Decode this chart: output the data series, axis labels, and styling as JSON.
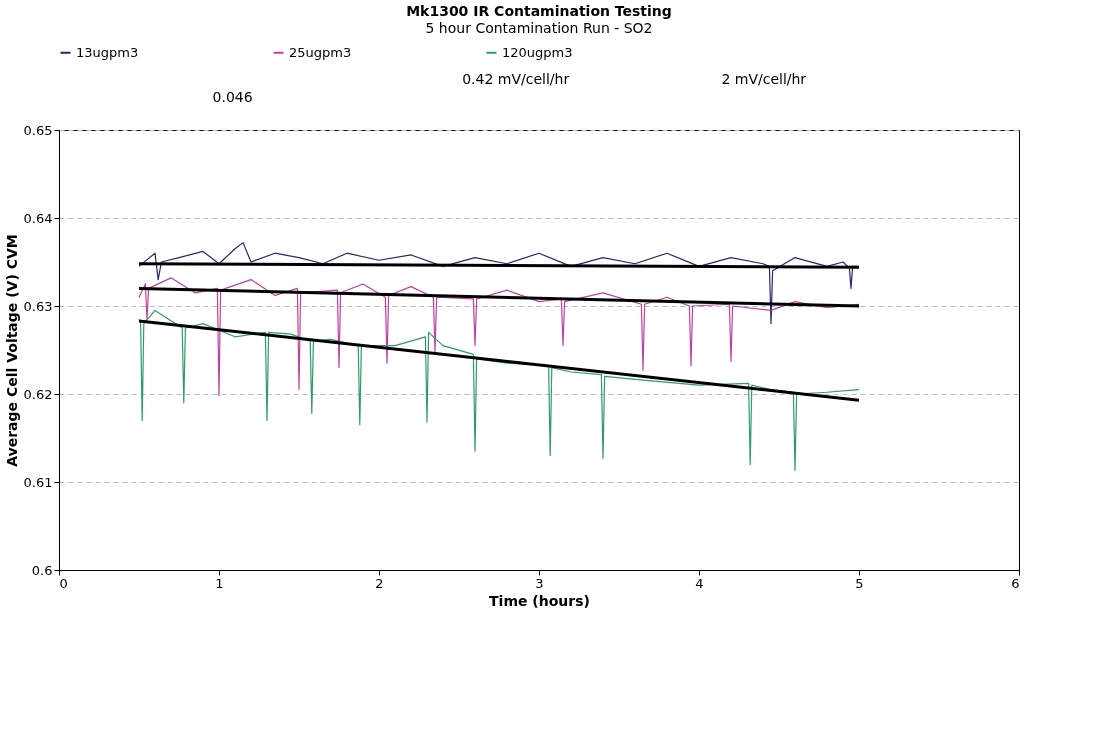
{
  "chart_data": {
    "type": "line",
    "title": "Mk1300 IR Contamination Testing",
    "subtitle": "5 hour Contamination Run - SO2",
    "xlabel": "Time (hours)",
    "ylabel": "Average Cell Voltage (V) CVM",
    "annotations": [
      "0.046",
      "0.42 mV/cell/hr",
      "2 mV/cell/hr"
    ],
    "xlim": [
      0,
      6
    ],
    "xticks": [
      0,
      1,
      2,
      3,
      4,
      5,
      6
    ],
    "ylim": [
      0.6,
      0.65
    ],
    "yticks": [
      0.6,
      0.61,
      0.62,
      0.63,
      0.64,
      0.65
    ],
    "grid": "y",
    "legend": "top",
    "marker": "none",
    "line_style": "solid",
    "series": [
      {
        "name": "13ugpm3",
        "color": "#27276e",
        "x": [
          0.5,
          0.6,
          0.62,
          0.64,
          0.75,
          0.9,
          1.0,
          1.1,
          1.15,
          1.2,
          1.35,
          1.5,
          1.65,
          1.8,
          2.0,
          2.2,
          2.4,
          2.6,
          2.8,
          3.0,
          3.2,
          3.4,
          3.6,
          3.8,
          4.0,
          4.2,
          4.4,
          4.44,
          4.45,
          4.46,
          4.6,
          4.8,
          4.9,
          4.94,
          4.95,
          4.96,
          5.0
        ],
        "values": [
          0.6345,
          0.636,
          0.633,
          0.635,
          0.6355,
          0.6362,
          0.6348,
          0.6365,
          0.6372,
          0.635,
          0.636,
          0.6355,
          0.6348,
          0.636,
          0.6352,
          0.6358,
          0.6345,
          0.6355,
          0.6348,
          0.636,
          0.6345,
          0.6355,
          0.6348,
          0.636,
          0.6345,
          0.6355,
          0.6348,
          0.6345,
          0.628,
          0.634,
          0.6355,
          0.6345,
          0.635,
          0.6343,
          0.632,
          0.6345,
          0.6345
        ]
      },
      {
        "name": "25ugpm3",
        "color": "#c0409f",
        "x": [
          0.5,
          0.54,
          0.55,
          0.56,
          0.7,
          0.85,
          0.99,
          1.0,
          1.01,
          1.2,
          1.35,
          1.49,
          1.5,
          1.51,
          1.74,
          1.75,
          1.76,
          1.9,
          2.04,
          2.05,
          2.06,
          2.2,
          2.34,
          2.35,
          2.36,
          2.59,
          2.6,
          2.61,
          2.8,
          3.0,
          3.14,
          3.15,
          3.16,
          3.4,
          3.64,
          3.65,
          3.66,
          3.8,
          3.94,
          3.95,
          3.96,
          4.19,
          4.2,
          4.21,
          4.45,
          4.6,
          4.8,
          5.0
        ],
        "values": [
          0.631,
          0.6325,
          0.6285,
          0.632,
          0.6332,
          0.6315,
          0.632,
          0.6198,
          0.6318,
          0.633,
          0.6312,
          0.632,
          0.6205,
          0.6315,
          0.6318,
          0.623,
          0.6315,
          0.6325,
          0.631,
          0.6235,
          0.6312,
          0.6322,
          0.631,
          0.6248,
          0.631,
          0.6308,
          0.6255,
          0.6308,
          0.6318,
          0.6305,
          0.6308,
          0.6255,
          0.6305,
          0.6315,
          0.6302,
          0.6227,
          0.6302,
          0.631,
          0.63,
          0.6232,
          0.63,
          0.6302,
          0.6237,
          0.63,
          0.6295,
          0.6305,
          0.6298,
          0.6302
        ]
      },
      {
        "name": "120ugpm3",
        "color": "#2e9c68",
        "x": [
          0.5,
          0.51,
          0.52,
          0.53,
          0.6,
          0.77,
          0.78,
          0.79,
          0.9,
          1.1,
          1.29,
          1.3,
          1.31,
          1.45,
          1.57,
          1.58,
          1.59,
          1.7,
          1.87,
          1.88,
          1.89,
          2.1,
          2.29,
          2.3,
          2.31,
          2.4,
          2.59,
          2.6,
          2.61,
          2.8,
          3.06,
          3.07,
          3.08,
          3.2,
          3.39,
          3.4,
          3.41,
          3.7,
          4.0,
          4.31,
          4.32,
          4.33,
          4.45,
          4.59,
          4.6,
          4.61,
          4.8,
          5.0
        ],
        "values": [
          0.6285,
          0.6282,
          0.617,
          0.628,
          0.6295,
          0.6275,
          0.619,
          0.6275,
          0.628,
          0.6265,
          0.627,
          0.617,
          0.627,
          0.6268,
          0.626,
          0.6178,
          0.626,
          0.6262,
          0.6255,
          0.6165,
          0.6255,
          0.6255,
          0.6265,
          0.6168,
          0.627,
          0.6255,
          0.6245,
          0.6135,
          0.624,
          0.6235,
          0.6232,
          0.613,
          0.623,
          0.6225,
          0.6222,
          0.6127,
          0.622,
          0.6215,
          0.621,
          0.6212,
          0.612,
          0.621,
          0.6205,
          0.6202,
          0.6113,
          0.62,
          0.6202,
          0.6205
        ]
      },
      {
        "color": "#000000",
        "x": [
          0.5,
          5.0
        ],
        "values": [
          0.6348,
          0.6344
        ]
      },
      {
        "color": "#000000",
        "x": [
          0.5,
          5.0
        ],
        "values": [
          0.632,
          0.63
        ]
      },
      {
        "color": "#000000",
        "x": [
          0.5,
          5.0
        ],
        "values": [
          0.6283,
          0.6193
        ]
      }
    ]
  }
}
